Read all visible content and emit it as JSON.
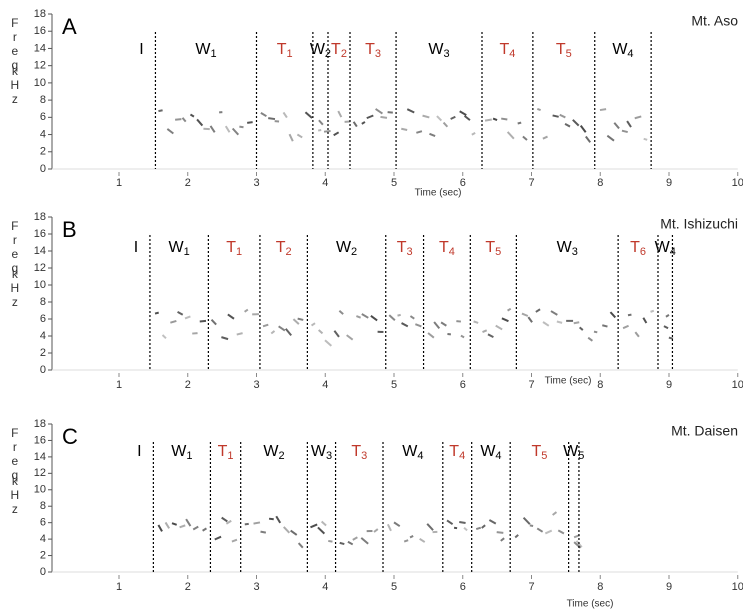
{
  "chart_data": [
    {
      "type": "spectrogram",
      "label": "A",
      "title": "Mt. Aso",
      "ylabel": [
        "Freq",
        "kHz"
      ],
      "xlabel": "Time (sec)",
      "ylim": [
        0,
        18
      ],
      "yticks": [
        0,
        2,
        4,
        6,
        8,
        10,
        12,
        14,
        16,
        18
      ],
      "xlim": [
        0,
        10
      ],
      "xticks": [
        1,
        2,
        3,
        4,
        5,
        6,
        7,
        8,
        9,
        10
      ],
      "boundaries": [
        1.53,
        3.0,
        3.82,
        4.04,
        4.36,
        5.03,
        6.28,
        7.02,
        7.92,
        8.74
      ],
      "segments": [
        {
          "name": "I",
          "color": "#000000"
        },
        {
          "name": "W",
          "sub": "1",
          "color": "#000000"
        },
        {
          "name": "T",
          "sub": "1",
          "color": "#c0392b"
        },
        {
          "name": "W",
          "sub": "2",
          "color": "#000000"
        },
        {
          "name": "T",
          "sub": "2",
          "color": "#c0392b"
        },
        {
          "name": "T",
          "sub": "3",
          "color": "#c0392b"
        },
        {
          "name": "W",
          "sub": "3",
          "color": "#000000"
        },
        {
          "name": "T",
          "sub": "4",
          "color": "#c0392b"
        },
        {
          "name": "T",
          "sub": "5",
          "color": "#c0392b"
        },
        {
          "name": "W",
          "sub": "4",
          "color": "#000000"
        }
      ]
    },
    {
      "type": "spectrogram",
      "label": "B",
      "title": "Mt. Ishizuchi",
      "ylabel": [
        "Freq",
        "kHz"
      ],
      "xlabel": "Time (sec)",
      "ylim": [
        0,
        18
      ],
      "yticks": [
        0,
        2,
        4,
        6,
        8,
        10,
        12,
        14,
        16,
        18
      ],
      "xlim": [
        0,
        10
      ],
      "xticks": [
        1,
        2,
        3,
        4,
        5,
        6,
        7,
        8,
        9,
        10
      ],
      "boundaries": [
        1.45,
        2.3,
        3.05,
        3.74,
        4.88,
        5.43,
        6.11,
        6.78,
        8.26,
        8.84,
        9.05
      ],
      "segments": [
        {
          "name": "I",
          "color": "#000000"
        },
        {
          "name": "W",
          "sub": "1",
          "color": "#000000"
        },
        {
          "name": "T",
          "sub": "1",
          "color": "#c0392b"
        },
        {
          "name": "T",
          "sub": "2",
          "color": "#c0392b"
        },
        {
          "name": "W",
          "sub": "2",
          "color": "#000000"
        },
        {
          "name": "T",
          "sub": "3",
          "color": "#c0392b"
        },
        {
          "name": "T",
          "sub": "4",
          "color": "#c0392b"
        },
        {
          "name": "T",
          "sub": "5",
          "color": "#c0392b"
        },
        {
          "name": "W",
          "sub": "3",
          "color": "#000000"
        },
        {
          "name": "T",
          "sub": "6",
          "color": "#c0392b"
        },
        {
          "name": "W",
          "sub": "4",
          "color": "#000000"
        }
      ]
    },
    {
      "type": "spectrogram",
      "label": "C",
      "title": "Mt. Daisen",
      "ylabel": [
        "Freq",
        "kHz"
      ],
      "xlabel": "Time (sec)",
      "ylim": [
        0,
        18
      ],
      "yticks": [
        0,
        2,
        4,
        6,
        8,
        10,
        12,
        14,
        16,
        18
      ],
      "xlim": [
        0,
        10
      ],
      "xticks": [
        1,
        2,
        3,
        4,
        5,
        6,
        7,
        8,
        9,
        10
      ],
      "boundaries": [
        1.5,
        2.33,
        2.77,
        3.74,
        4.15,
        4.84,
        5.71,
        6.13,
        6.69,
        7.54,
        7.69
      ],
      "segments": [
        {
          "name": "I",
          "color": "#000000"
        },
        {
          "name": "W",
          "sub": "1",
          "color": "#000000"
        },
        {
          "name": "T",
          "sub": "1",
          "color": "#c0392b"
        },
        {
          "name": "W",
          "sub": "2",
          "color": "#000000"
        },
        {
          "name": "W",
          "sub": "3",
          "color": "#000000"
        },
        {
          "name": "T",
          "sub": "3",
          "color": "#c0392b"
        },
        {
          "name": "W",
          "sub": "4",
          "color": "#000000"
        },
        {
          "name": "T",
          "sub": "4",
          "color": "#c0392b"
        },
        {
          "name": "W",
          "sub": "4",
          "color": "#000000"
        },
        {
          "name": "T",
          "sub": "5",
          "color": "#c0392b"
        },
        {
          "name": "W",
          "sub": "5",
          "color": "#000000"
        }
      ]
    }
  ]
}
